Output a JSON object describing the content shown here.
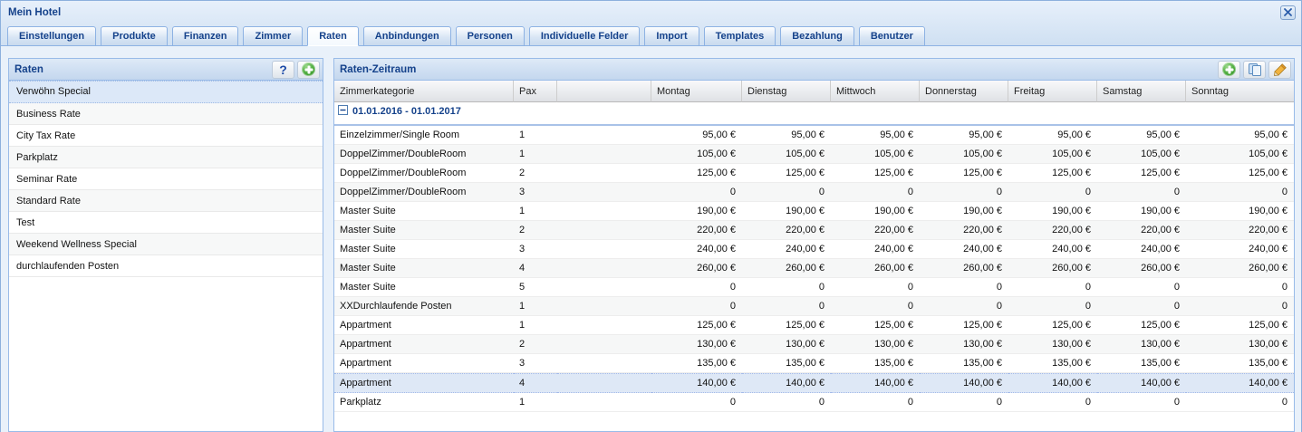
{
  "colors": {
    "title_text": "#15428b",
    "panel_border": "#99bbe8",
    "selection_bg": "#dce8f8",
    "group_underline": "#a9c2e8",
    "accent_green": "#3f9c33"
  },
  "window": {
    "title": "Mein Hotel"
  },
  "icons": {
    "help_glyph": "?"
  },
  "tabs": [
    {
      "label": "Einstellungen",
      "active": false
    },
    {
      "label": "Produkte",
      "active": false
    },
    {
      "label": "Finanzen",
      "active": false
    },
    {
      "label": "Zimmer",
      "active": false
    },
    {
      "label": "Raten",
      "active": true
    },
    {
      "label": "Anbindungen",
      "active": false
    },
    {
      "label": "Personen",
      "active": false
    },
    {
      "label": "Individuelle Felder",
      "active": false
    },
    {
      "label": "Import",
      "active": false
    },
    {
      "label": "Templates",
      "active": false
    },
    {
      "label": "Bezahlung",
      "active": false
    },
    {
      "label": "Benutzer",
      "active": false
    }
  ],
  "left_panel": {
    "title": "Raten",
    "tools": [
      {
        "name": "help"
      },
      {
        "name": "add"
      }
    ],
    "items": [
      {
        "label": "Verwöhn Special",
        "selected": true
      },
      {
        "label": "Business Rate"
      },
      {
        "label": "City Tax Rate"
      },
      {
        "label": "Parkplatz"
      },
      {
        "label": "Seminar Rate"
      },
      {
        "label": "Standard Rate"
      },
      {
        "label": "Test"
      },
      {
        "label": "Weekend Wellness Special"
      },
      {
        "label": "durchlaufenden Posten"
      }
    ]
  },
  "right_panel": {
    "title": "Raten-Zeitraum",
    "tools": [
      {
        "name": "add"
      },
      {
        "name": "copy"
      },
      {
        "name": "edit"
      }
    ],
    "table": {
      "columns": [
        "Zimmerkategorie",
        "Pax",
        "",
        "Montag",
        "Dienstag",
        "Mittwoch",
        "Donnerstag",
        "Freitag",
        "Samstag",
        "Sonntag"
      ],
      "group": {
        "label": "01.01.2016 - 01.01.2017"
      },
      "rows": [
        {
          "category": "Einzelzimmer/Single Room",
          "pax": "1",
          "values": [
            "95,00 €",
            "95,00 €",
            "95,00 €",
            "95,00 €",
            "95,00 €",
            "95,00 €",
            "95,00 €"
          ]
        },
        {
          "category": "DoppelZimmer/DoubleRoom",
          "pax": "1",
          "values": [
            "105,00 €",
            "105,00 €",
            "105,00 €",
            "105,00 €",
            "105,00 €",
            "105,00 €",
            "105,00 €"
          ]
        },
        {
          "category": "DoppelZimmer/DoubleRoom",
          "pax": "2",
          "values": [
            "125,00 €",
            "125,00 €",
            "125,00 €",
            "125,00 €",
            "125,00 €",
            "125,00 €",
            "125,00 €"
          ]
        },
        {
          "category": "DoppelZimmer/DoubleRoom",
          "pax": "3",
          "values": [
            "0",
            "0",
            "0",
            "0",
            "0",
            "0",
            "0"
          ]
        },
        {
          "category": "Master Suite",
          "pax": "1",
          "values": [
            "190,00 €",
            "190,00 €",
            "190,00 €",
            "190,00 €",
            "190,00 €",
            "190,00 €",
            "190,00 €"
          ]
        },
        {
          "category": "Master Suite",
          "pax": "2",
          "values": [
            "220,00 €",
            "220,00 €",
            "220,00 €",
            "220,00 €",
            "220,00 €",
            "220,00 €",
            "220,00 €"
          ]
        },
        {
          "category": "Master Suite",
          "pax": "3",
          "values": [
            "240,00 €",
            "240,00 €",
            "240,00 €",
            "240,00 €",
            "240,00 €",
            "240,00 €",
            "240,00 €"
          ]
        },
        {
          "category": "Master Suite",
          "pax": "4",
          "values": [
            "260,00 €",
            "260,00 €",
            "260,00 €",
            "260,00 €",
            "260,00 €",
            "260,00 €",
            "260,00 €"
          ]
        },
        {
          "category": "Master Suite",
          "pax": "5",
          "values": [
            "0",
            "0",
            "0",
            "0",
            "0",
            "0",
            "0"
          ]
        },
        {
          "category": "XXDurchlaufende Posten",
          "pax": "1",
          "values": [
            "0",
            "0",
            "0",
            "0",
            "0",
            "0",
            "0"
          ]
        },
        {
          "category": "Appartment",
          "pax": "1",
          "values": [
            "125,00 €",
            "125,00 €",
            "125,00 €",
            "125,00 €",
            "125,00 €",
            "125,00 €",
            "125,00 €"
          ]
        },
        {
          "category": "Appartment",
          "pax": "2",
          "values": [
            "130,00 €",
            "130,00 €",
            "130,00 €",
            "130,00 €",
            "130,00 €",
            "130,00 €",
            "130,00 €"
          ]
        },
        {
          "category": "Appartment",
          "pax": "3",
          "values": [
            "135,00 €",
            "135,00 €",
            "135,00 €",
            "135,00 €",
            "135,00 €",
            "135,00 €",
            "135,00 €"
          ]
        },
        {
          "category": "Appartment",
          "pax": "4",
          "selected": true,
          "values": [
            "140,00 €",
            "140,00 €",
            "140,00 €",
            "140,00 €",
            "140,00 €",
            "140,00 €",
            "140,00 €"
          ]
        },
        {
          "category": "Parkplatz",
          "pax": "1",
          "values": [
            "0",
            "0",
            "0",
            "0",
            "0",
            "0",
            "0"
          ]
        }
      ]
    }
  }
}
